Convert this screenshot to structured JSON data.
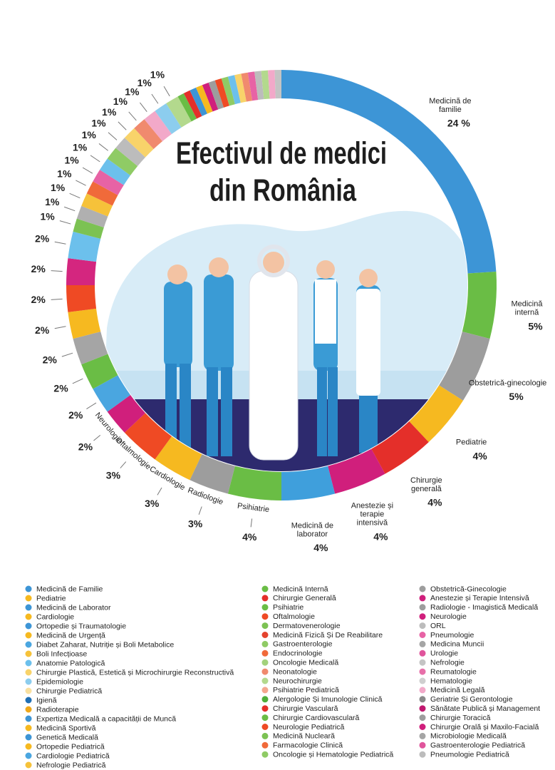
{
  "chart_data": {
    "type": "donut",
    "title": [
      "Efectivul de medici",
      "din România"
    ],
    "categories": [
      "Medicină de familie",
      "Medicină internă",
      "Obstetrică-ginecologie",
      "Pediatrie",
      "Chirurgie generală",
      "Anestezie și terapie intensivă",
      "Medicină de laborator",
      "Psihiatrie",
      "Radiologie",
      "Cardiologie",
      "Oftalmologie",
      "Neurologie",
      null,
      null,
      null,
      null,
      null,
      null,
      null,
      null,
      null,
      null,
      null,
      null,
      null,
      null,
      null,
      null,
      null,
      null,
      null,
      null
    ],
    "values": [
      24,
      5,
      5,
      4,
      4,
      4,
      4,
      4,
      3,
      3,
      3,
      2,
      2,
      2,
      2,
      2,
      2,
      2,
      2,
      1,
      1,
      1,
      1,
      1,
      1,
      1,
      1,
      1,
      1,
      1,
      1,
      1
    ],
    "value_labels": [
      "24 %",
      "5%",
      "5%",
      "4%",
      "4%",
      "4%",
      "4%",
      "4%",
      "3%",
      "3%",
      "3%",
      "2%",
      "2%",
      "2%",
      "2%",
      "2%",
      "2%",
      "2%",
      "2%",
      "1%",
      "1%",
      "1%",
      "1%",
      "1%",
      "1%",
      "1%",
      "1%",
      "1%",
      "1%",
      "1%",
      "1%",
      "1%"
    ],
    "colors": [
      "#3d95d6",
      "#6abd45",
      "#9d9d9d",
      "#f6b920",
      "#e42f2a",
      "#d01f7c",
      "#3f9fdc",
      "#6abd45",
      "#9d9d9d",
      "#f6b920",
      "#ef4a24",
      "#d01f7c",
      "#4aa6e0",
      "#6abd45",
      "#a5a5a5",
      "#f6b920",
      "#ef4a24",
      "#d4267f",
      "#6cc0ec",
      "#7cc253",
      "#b0b0b0",
      "#f6c23a",
      "#f06a3a",
      "#e763a5",
      "#6cc0ec",
      "#8fcb65",
      "#bcbcbc",
      "#f8d36a",
      "#f08a6e",
      "#f2a9c9",
      "#8ccdee",
      "#b3d98d"
    ],
    "legend": [
      [
        {
          "name": "Medicină de Familie",
          "color": "#3d95d6"
        },
        {
          "name": "Pediatrie",
          "color": "#f6b920"
        },
        {
          "name": "Medicină de Laborator",
          "color": "#3d95d6"
        },
        {
          "name": "Cardiologie",
          "color": "#f6b920"
        },
        {
          "name": "Ortopedie și Traumatologie",
          "color": "#3d95d6"
        },
        {
          "name": "Medicină de Urgență",
          "color": "#f6b920"
        },
        {
          "name": "Diabet Zaharat, Nutriție și Boli Metabolice",
          "color": "#4aa6e0"
        },
        {
          "name": "Boli Infecțioase",
          "color": "#f6c23a"
        },
        {
          "name": "Anatomie Patologică",
          "color": "#6cc0ec"
        },
        {
          "name": "Chirurgie Plastică, Estetică și Microchirurgie Reconstructivă",
          "color": "#f8d36a"
        },
        {
          "name": "Epidemiologie",
          "color": "#8ccdee"
        },
        {
          "name": "Chirurgie Pediatrică",
          "color": "#f9e0a0"
        },
        {
          "name": "Igienă",
          "color": "#1f6fb5"
        },
        {
          "name": "Radioterapie",
          "color": "#f0a81a"
        },
        {
          "name": "Expertiza Medicală a capacității de Muncă",
          "color": "#3d95d6"
        },
        {
          "name": "Medicină Sportivă",
          "color": "#f6b920"
        },
        {
          "name": "Genetică Medicală",
          "color": "#3d95d6"
        },
        {
          "name": "Ortopedie Pediatrică",
          "color": "#f6b920"
        },
        {
          "name": "Cardiologie Pediatrică",
          "color": "#4aa6e0"
        },
        {
          "name": "Nefrologie Pediatrică",
          "color": "#f6c23a"
        }
      ],
      [
        {
          "name": "Medicină Internă",
          "color": "#6abd45"
        },
        {
          "name": "Chirurgie Generală",
          "color": "#e42f2a"
        },
        {
          "name": "Psihiatrie",
          "color": "#6abd45"
        },
        {
          "name": "Oftalmologie",
          "color": "#ef4a24"
        },
        {
          "name": "Dermatovenerologie",
          "color": "#7cc253"
        },
        {
          "name": "Medicină Fizică Și De Reabilitare",
          "color": "#e4432e"
        },
        {
          "name": "Gastroenterologie",
          "color": "#8fcb65"
        },
        {
          "name": "Endocrinologie",
          "color": "#f06a3a"
        },
        {
          "name": "Oncologie Medicală",
          "color": "#a3d27c"
        },
        {
          "name": "Neonatologie",
          "color": "#f08a6e"
        },
        {
          "name": "Neurochirurgie",
          "color": "#b3d98d"
        },
        {
          "name": "Psihiatrie Pediatrică",
          "color": "#f4a68e"
        },
        {
          "name": "Alergologie Și Imunologie Clinică",
          "color": "#4fae3a"
        },
        {
          "name": "Chirurgie Vasculară",
          "color": "#e42f2a"
        },
        {
          "name": "Chirurgie Cardiovasculară",
          "color": "#6abd45"
        },
        {
          "name": "Neurologie Pediatrică",
          "color": "#ef4a24"
        },
        {
          "name": "Medicină Nucleară",
          "color": "#7cc253"
        },
        {
          "name": "Farmacologie Clinică",
          "color": "#f06a3a"
        },
        {
          "name": "Oncologie și Hematologie Pediatrică",
          "color": "#8fcb65"
        }
      ],
      [
        {
          "name": "Obstetrică-Ginecologie",
          "color": "#9d9d9d"
        },
        {
          "name": "Anestezie și Terapie Intensivă",
          "color": "#d01f7c"
        },
        {
          "name": "Radiologie - Imagistică Medicală",
          "color": "#9d9d9d"
        },
        {
          "name": "Neurologie",
          "color": "#d01f7c"
        },
        {
          "name": "ORL",
          "color": "#bcbcbc"
        },
        {
          "name": "Pneumologie",
          "color": "#e763a5"
        },
        {
          "name": "Medicina Muncii",
          "color": "#a5a5a5"
        },
        {
          "name": "Urologie",
          "color": "#e0559c"
        },
        {
          "name": "Nefrologie",
          "color": "#c4c4c4"
        },
        {
          "name": "Reumatologie",
          "color": "#e76fa9"
        },
        {
          "name": "Hematologie",
          "color": "#cfcfcf"
        },
        {
          "name": "Medicină Legală",
          "color": "#f2a9c9"
        },
        {
          "name": "Geriatrie Și Gerontologie",
          "color": "#8a8a8a"
        },
        {
          "name": "Sănătate Publică și Management",
          "color": "#c0196f"
        },
        {
          "name": "Chirurgie Toracică",
          "color": "#9d9d9d"
        },
        {
          "name": "Chirurgie Orală și Maxilo-Facială",
          "color": "#d01f7c"
        },
        {
          "name": "Microbiologie Medicală",
          "color": "#a5a5a5"
        },
        {
          "name": "Gastroenterologie Pediatrică",
          "color": "#e0559c"
        },
        {
          "name": "Pneumologie Pediatrică",
          "color": "#bcbcbc"
        }
      ]
    ]
  }
}
